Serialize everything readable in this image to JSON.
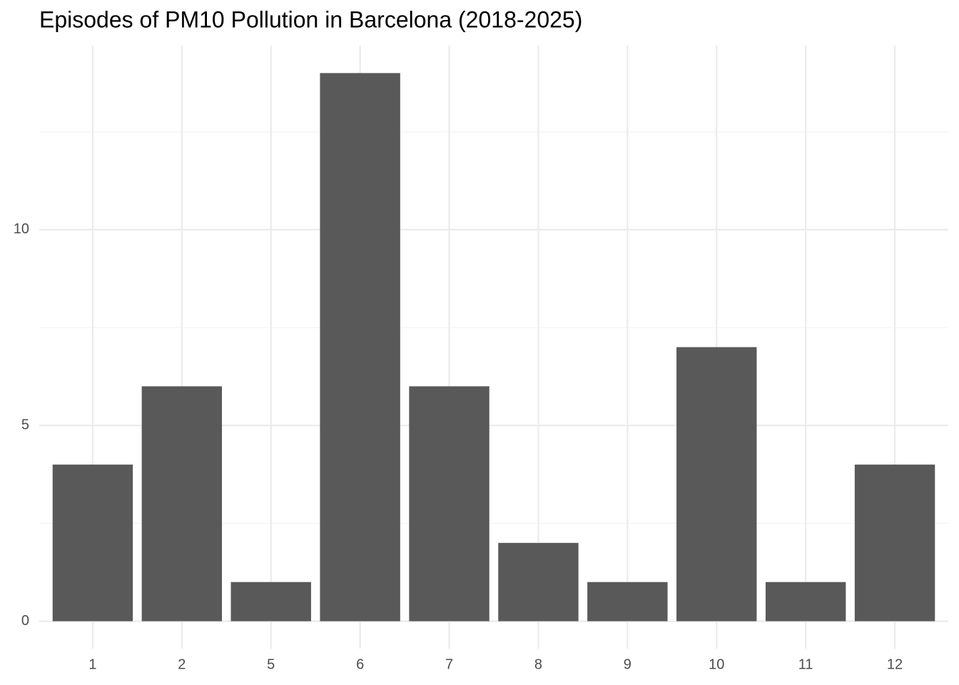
{
  "chart_data": {
    "type": "bar",
    "title": "Episodes of PM10 Pollution in Barcelona (2018-2025)",
    "categories": [
      "1",
      "2",
      "5",
      "6",
      "7",
      "8",
      "9",
      "10",
      "11",
      "12"
    ],
    "values": [
      4,
      6,
      1,
      14,
      6,
      2,
      1,
      7,
      1,
      4
    ],
    "color": "#595959",
    "ylim": [
      -0.7,
      14.7
    ],
    "yticks": [
      0,
      5,
      10
    ],
    "minor_yticks": [
      2.5,
      7.5,
      12.5
    ],
    "grid": true
  }
}
